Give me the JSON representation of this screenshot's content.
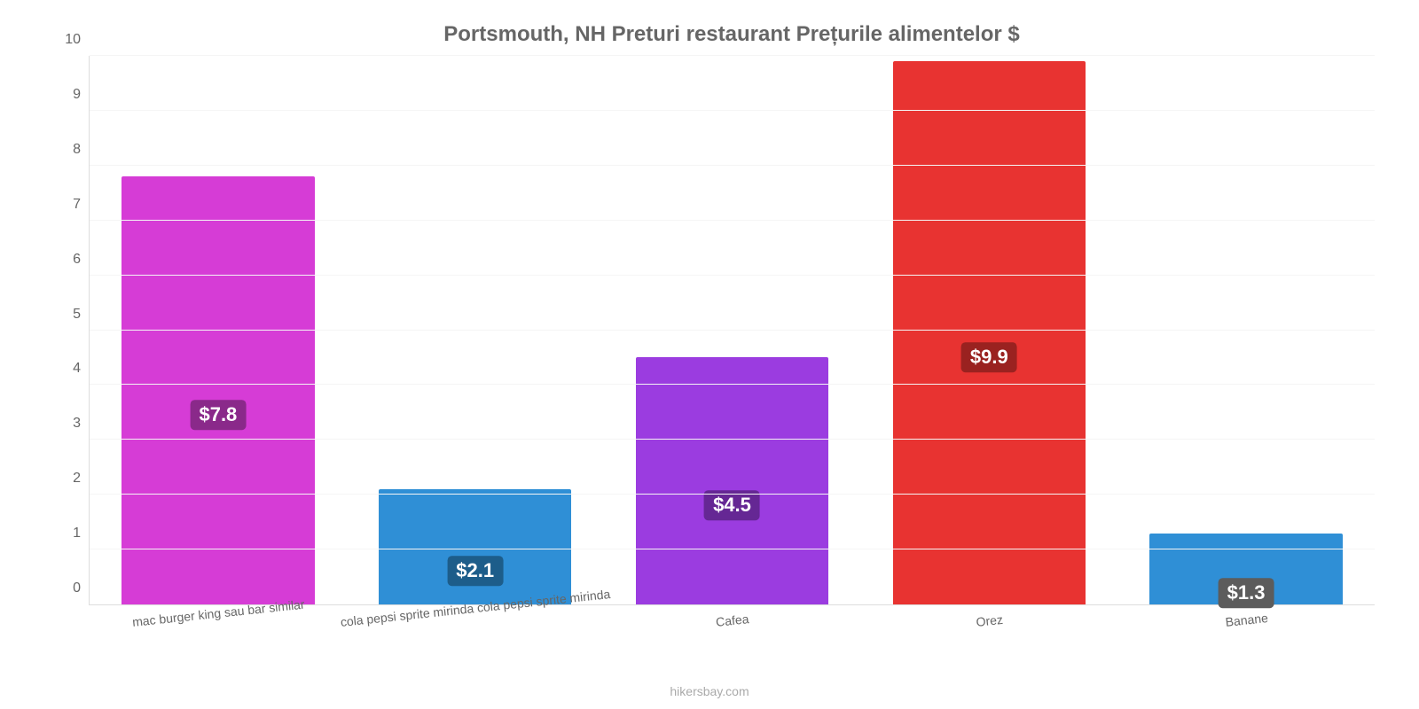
{
  "chart": {
    "type": "bar",
    "title": "Portsmouth, NH Preturi restaurant Prețurile alimentelor $",
    "title_color": "#666666",
    "title_fontsize": 24,
    "background_color": "#ffffff",
    "grid_color": "#f5f5f5",
    "axis_color": "#dddddd",
    "tick_label_color": "#666666",
    "tick_fontsize": 16,
    "xlabel_fontsize": 14,
    "xlabel_rotation_deg": -6,
    "ylim": [
      0,
      10
    ],
    "ytick_step": 1,
    "yticks": [
      0,
      1,
      2,
      3,
      4,
      5,
      6,
      7,
      8,
      9,
      10
    ],
    "bar_width_ratio": 0.75,
    "footer": "hikersbay.com",
    "footer_color": "#aaaaaa",
    "value_label_text_color": "#ffffff",
    "value_label_fontsize": 22,
    "categories": [
      "mac burger king sau bar similar",
      "cola pepsi sprite mirinda cola pepsi sprite mirinda",
      "Cafea",
      "Orez",
      "Banane"
    ],
    "values": [
      7.8,
      2.1,
      4.5,
      9.9,
      1.3
    ],
    "value_labels": [
      "$7.8",
      "$2.1",
      "$4.5",
      "$9.9",
      "$1.3"
    ],
    "bar_colors": [
      "#d63cd6",
      "#2f8fd6",
      "#9b3ce0",
      "#e83331",
      "#2f8fd6"
    ],
    "label_bg_colors": [
      "#8a298a",
      "#1d5d8a",
      "#652794",
      "#9a2220",
      "#5c5c5c"
    ]
  }
}
